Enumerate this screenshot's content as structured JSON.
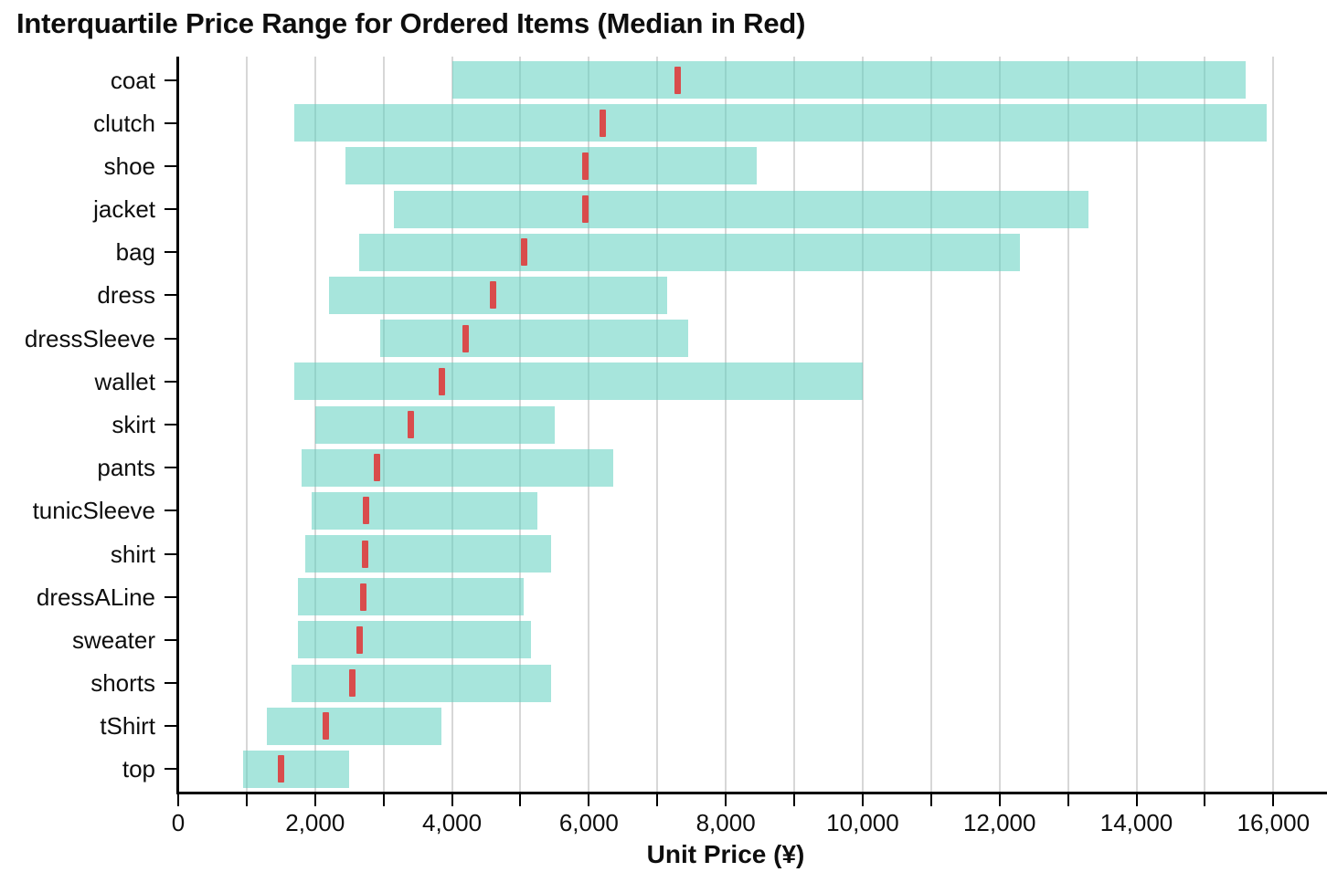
{
  "chart": {
    "title": "Interquartile Price Range for Ordered Items (Median in Red)",
    "xlabel": "Unit Price (¥)"
  },
  "chart_data": {
    "type": "bar",
    "orientation": "horizontal",
    "title": "Interquartile Price Range for Ordered Items (Median in Red)",
    "xlabel": "Unit Price (¥)",
    "ylabel": "",
    "xlim": [
      0,
      16000
    ],
    "x_tick_step": 1000,
    "x_label_step": 2000,
    "x_tick_labels": [
      "0",
      "2,000",
      "4,000",
      "6,000",
      "8,000",
      "10,000",
      "12,000",
      "14,000",
      "16,000"
    ],
    "grid": true,
    "legend": "none",
    "categories": [
      "coat",
      "clutch",
      "shoe",
      "jacket",
      "bag",
      "dress",
      "dressSleeve",
      "wallet",
      "skirt",
      "pants",
      "tunicSleeve",
      "shirt",
      "dressALine",
      "sweater",
      "shorts",
      "tShirt",
      "top"
    ],
    "series": [
      {
        "name": "q1",
        "values": [
          4000,
          1700,
          2450,
          3150,
          2650,
          2200,
          2950,
          1700,
          2000,
          1800,
          1950,
          1850,
          1750,
          1750,
          1650,
          1300,
          950
        ]
      },
      {
        "name": "median",
        "values": [
          7300,
          6200,
          5950,
          5950,
          5050,
          4600,
          4200,
          3850,
          3400,
          2900,
          2750,
          2730,
          2700,
          2650,
          2550,
          2150,
          1500
        ]
      },
      {
        "name": "q3",
        "values": [
          15600,
          15900,
          8450,
          13300,
          12300,
          7150,
          7450,
          10000,
          5500,
          6350,
          5250,
          5450,
          5050,
          5150,
          5450,
          3850,
          2500
        ]
      }
    ],
    "colors": {
      "bar_fill": "#a7e6dc",
      "median": "#d94c4c",
      "gridline": "#d7d7d7",
      "axis": "#000000",
      "text": "#0e0e0e"
    }
  }
}
